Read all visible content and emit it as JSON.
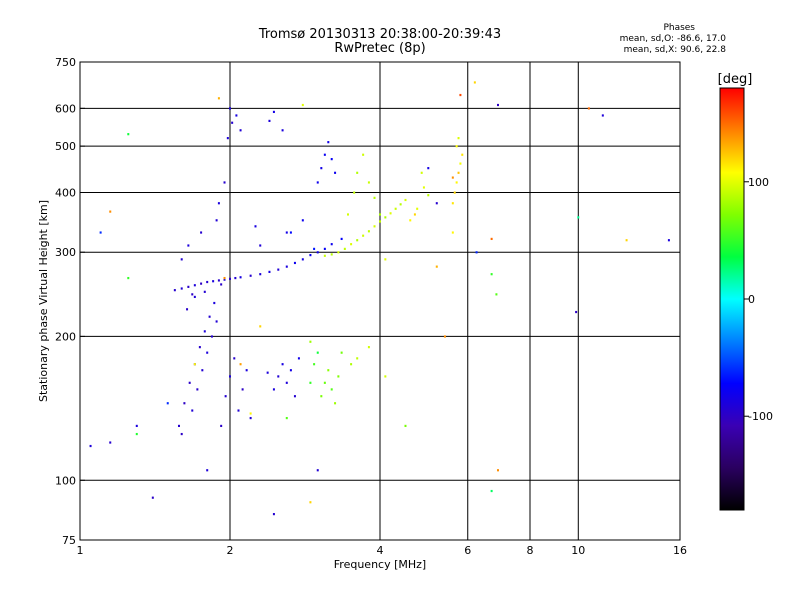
{
  "title_line1": "Tromsø 20130313 20:38:00-20:39:43",
  "title_line2": "RwPretec (8p)",
  "stats": {
    "heading": "Phases",
    "line_O": "mean, sd,O: -86.6, 17.0",
    "line_X": "mean, sd,X:  90.6, 22.8"
  },
  "chart_data": {
    "type": "scatter",
    "title": "Tromsø 20130313 20:38:00-20:39:43",
    "subtitle": "RwPretec (8p)",
    "xlabel": "Frequency [MHz]",
    "ylabel": "Stationary phase Virtual Height [km]",
    "x_scale": "log",
    "y_scale": "log",
    "xlim": [
      1,
      16
    ],
    "ylim": [
      75,
      750
    ],
    "x_ticks": [
      1,
      2,
      4,
      6,
      8,
      10,
      16
    ],
    "x_tick_labels": [
      "1",
      "2",
      "4",
      "6",
      "8",
      "10",
      "16"
    ],
    "y_ticks": [
      75,
      100,
      200,
      300,
      400,
      500,
      600,
      750
    ],
    "y_tick_labels": [
      "75",
      "100",
      "200",
      "300",
      "400",
      "500",
      "600",
      "750"
    ],
    "grid_x": [
      2,
      4,
      6,
      8,
      10
    ],
    "grid_y": [
      100,
      200,
      300,
      400,
      500,
      600
    ],
    "grid": true,
    "colorbar": {
      "label": "[deg]",
      "range": [
        -180,
        180
      ],
      "ticks": [
        100,
        0,
        -100
      ],
      "tick_labels": [
        "100",
        "0",
        "-100"
      ],
      "colors": [
        "#000000",
        "#2a0060",
        "#3a00b4",
        "#0000ff",
        "#0080ff",
        "#00ffff",
        "#00ff40",
        "#80ff00",
        "#ffff00",
        "#ff8000",
        "#ff0000"
      ]
    },
    "series": [
      {
        "name": "O",
        "phase_mean": -86.6,
        "phase_sd": 17.0,
        "points": [
          [
            1.55,
            250,
            -95
          ],
          [
            1.6,
            252,
            -92
          ],
          [
            1.65,
            254,
            -98
          ],
          [
            1.7,
            256,
            -90
          ],
          [
            1.75,
            258,
            -100
          ],
          [
            1.8,
            260,
            -94
          ],
          [
            1.85,
            261,
            -88
          ],
          [
            1.9,
            262,
            -96
          ],
          [
            1.95,
            263,
            -91
          ],
          [
            2.0,
            264,
            -99
          ],
          [
            2.05,
            265,
            -93
          ],
          [
            2.1,
            266,
            -87
          ],
          [
            2.2,
            268,
            -95
          ],
          [
            2.3,
            270,
            -90
          ],
          [
            2.4,
            273,
            -85
          ],
          [
            2.5,
            276,
            -92
          ],
          [
            2.6,
            280,
            -88
          ],
          [
            2.7,
            285,
            -80
          ],
          [
            2.8,
            290,
            -84
          ],
          [
            2.9,
            296,
            -78
          ],
          [
            3.0,
            300,
            -82
          ],
          [
            3.1,
            305,
            -76
          ],
          [
            3.2,
            312,
            -80
          ],
          [
            3.35,
            320,
            -74
          ],
          [
            1.58,
            130,
            -95
          ],
          [
            1.62,
            145,
            -100
          ],
          [
            1.66,
            160,
            -98
          ],
          [
            1.7,
            175,
            -92
          ],
          [
            1.74,
            190,
            -96
          ],
          [
            1.78,
            205,
            -90
          ],
          [
            1.82,
            220,
            -94
          ],
          [
            1.86,
            235,
            -88
          ],
          [
            1.6,
            125,
            -99
          ],
          [
            1.68,
            140,
            -91
          ],
          [
            1.72,
            155,
            -97
          ],
          [
            1.76,
            170,
            -93
          ],
          [
            1.8,
            185,
            -89
          ],
          [
            1.84,
            200,
            -95
          ],
          [
            1.88,
            215,
            -92
          ],
          [
            1.92,
            130,
            -98
          ],
          [
            1.96,
            150,
            -94
          ],
          [
            2.0,
            165,
            -90
          ],
          [
            2.04,
            180,
            -96
          ],
          [
            2.08,
            140,
            -92
          ],
          [
            2.12,
            155,
            -99
          ],
          [
            2.16,
            170,
            -88
          ],
          [
            2.2,
            135,
            -93
          ],
          [
            1.64,
            228,
            -97
          ],
          [
            1.7,
            242,
            -91
          ],
          [
            2.45,
            155,
            -88
          ],
          [
            2.5,
            165,
            -92
          ],
          [
            2.55,
            175,
            -86
          ],
          [
            2.6,
            160,
            -90
          ],
          [
            2.65,
            170,
            -84
          ],
          [
            2.7,
            150,
            -94
          ],
          [
            2.38,
            168,
            -89
          ],
          [
            2.75,
            180,
            -82
          ],
          [
            1.88,
            350,
            -92
          ],
          [
            1.9,
            380,
            -88
          ],
          [
            1.95,
            420,
            -95
          ],
          [
            1.98,
            520,
            -90
          ],
          [
            2.02,
            560,
            -94
          ],
          [
            2.06,
            580,
            -86
          ],
          [
            2.1,
            540,
            -92
          ],
          [
            2.0,
            600,
            -88
          ],
          [
            2.4,
            565,
            -90
          ],
          [
            2.45,
            590,
            -84
          ],
          [
            2.55,
            540,
            -88
          ],
          [
            3.0,
            420,
            -80
          ],
          [
            3.05,
            450,
            -84
          ],
          [
            3.1,
            480,
            -78
          ],
          [
            3.15,
            510,
            -82
          ],
          [
            3.2,
            470,
            -76
          ],
          [
            3.25,
            440,
            -80
          ],
          [
            1.6,
            290,
            -93
          ],
          [
            1.65,
            310,
            -89
          ],
          [
            1.75,
            330,
            -95
          ],
          [
            2.25,
            340,
            -87
          ],
          [
            2.3,
            310,
            -91
          ],
          [
            2.6,
            330,
            -83
          ],
          [
            2.8,
            350,
            -79
          ],
          [
            1.1,
            330,
            -60
          ],
          [
            1.05,
            118,
            -90
          ],
          [
            1.15,
            120,
            -95
          ],
          [
            1.3,
            130,
            -88
          ],
          [
            1.5,
            145,
            -60
          ],
          [
            1.4,
            92,
            -98
          ],
          [
            1.8,
            105,
            -90
          ],
          [
            3.0,
            105,
            -92
          ],
          [
            2.45,
            85,
            -94
          ],
          [
            5.0,
            450,
            -85
          ],
          [
            5.2,
            380,
            -95
          ],
          [
            9.9,
            225,
            -99
          ],
          [
            11.2,
            580,
            -90
          ],
          [
            15.2,
            318,
            -88
          ],
          [
            6.9,
            610,
            -100
          ],
          [
            6.25,
            300,
            -62
          ],
          [
            2.65,
            330,
            -70
          ],
          [
            2.95,
            305,
            -66
          ],
          [
            1.68,
            245,
            -99
          ],
          [
            1.78,
            248,
            -93
          ],
          [
            1.92,
            257,
            -97
          ]
        ]
      },
      {
        "name": "X",
        "phase_mean": 90.6,
        "phase_sd": 22.8,
        "points": [
          [
            3.1,
            295,
            92
          ],
          [
            3.2,
            297,
            88
          ],
          [
            3.3,
            300,
            95
          ],
          [
            3.4,
            305,
            90
          ],
          [
            3.5,
            312,
            98
          ],
          [
            3.6,
            318,
            86
          ],
          [
            3.7,
            325,
            94
          ],
          [
            3.8,
            332,
            89
          ],
          [
            3.9,
            340,
            96
          ],
          [
            4.0,
            348,
            91
          ],
          [
            4.1,
            355,
            85
          ],
          [
            4.2,
            362,
            99
          ],
          [
            4.3,
            370,
            93
          ],
          [
            4.4,
            378,
            88
          ],
          [
            4.5,
            386,
            97
          ],
          [
            3.45,
            360,
            95
          ],
          [
            3.55,
            400,
            90
          ],
          [
            3.6,
            440,
            86
          ],
          [
            3.7,
            480,
            94
          ],
          [
            3.8,
            420,
            92
          ],
          [
            3.9,
            390,
            88
          ],
          [
            4.0,
            360,
            84
          ],
          [
            4.6,
            350,
            110
          ],
          [
            4.7,
            360,
            120
          ],
          [
            4.75,
            370,
            100
          ],
          [
            4.85,
            440,
            95
          ],
          [
            4.9,
            410,
            100
          ],
          [
            5.0,
            395,
            90
          ],
          [
            5.6,
            380,
            115
          ],
          [
            5.65,
            400,
            120
          ],
          [
            5.7,
            420,
            110
          ],
          [
            5.75,
            440,
            125
          ],
          [
            5.8,
            460,
            105
          ],
          [
            5.85,
            480,
            115
          ],
          [
            5.7,
            500,
            108
          ],
          [
            5.75,
            520,
            98
          ],
          [
            3.05,
            150,
            70
          ],
          [
            3.1,
            160,
            65
          ],
          [
            3.15,
            170,
            75
          ],
          [
            3.2,
            155,
            60
          ],
          [
            3.25,
            145,
            80
          ],
          [
            3.3,
            165,
            72
          ],
          [
            3.35,
            185,
            68
          ],
          [
            3.6,
            180,
            90
          ],
          [
            3.8,
            190,
            95
          ],
          [
            2.9,
            160,
            50
          ],
          [
            2.95,
            175,
            55
          ],
          [
            4.5,
            130,
            70
          ],
          [
            6.2,
            680,
            120
          ],
          [
            5.6,
            330,
            110
          ],
          [
            5.8,
            640,
            160
          ],
          [
            6.7,
            320,
            150
          ],
          [
            6.9,
            105,
            140
          ],
          [
            6.7,
            270,
            50
          ],
          [
            6.85,
            245,
            60
          ],
          [
            5.4,
            200,
            140
          ],
          [
            4.1,
            165,
            95
          ],
          [
            3.5,
            175,
            85
          ],
          [
            2.8,
            610,
            100
          ],
          [
            2.9,
            195,
            80
          ],
          [
            1.15,
            365,
            140
          ],
          [
            1.25,
            530,
            40
          ],
          [
            1.25,
            265,
            50
          ],
          [
            1.7,
            175,
            110
          ],
          [
            1.95,
            265,
            140
          ],
          [
            2.3,
            210,
            120
          ],
          [
            2.2,
            138,
            110
          ],
          [
            2.1,
            175,
            135
          ],
          [
            1.9,
            630,
            130
          ],
          [
            2.6,
            135,
            60
          ],
          [
            2.9,
            90,
            120
          ],
          [
            3.0,
            185,
            40
          ],
          [
            4.1,
            290,
            100
          ],
          [
            5.2,
            280,
            130
          ],
          [
            5.6,
            430,
            140
          ],
          [
            10.5,
            600,
            150
          ],
          [
            12.5,
            318,
            120
          ],
          [
            10.0,
            355,
            20
          ],
          [
            6.7,
            95,
            30
          ],
          [
            1.3,
            125,
            45
          ]
        ]
      }
    ]
  }
}
